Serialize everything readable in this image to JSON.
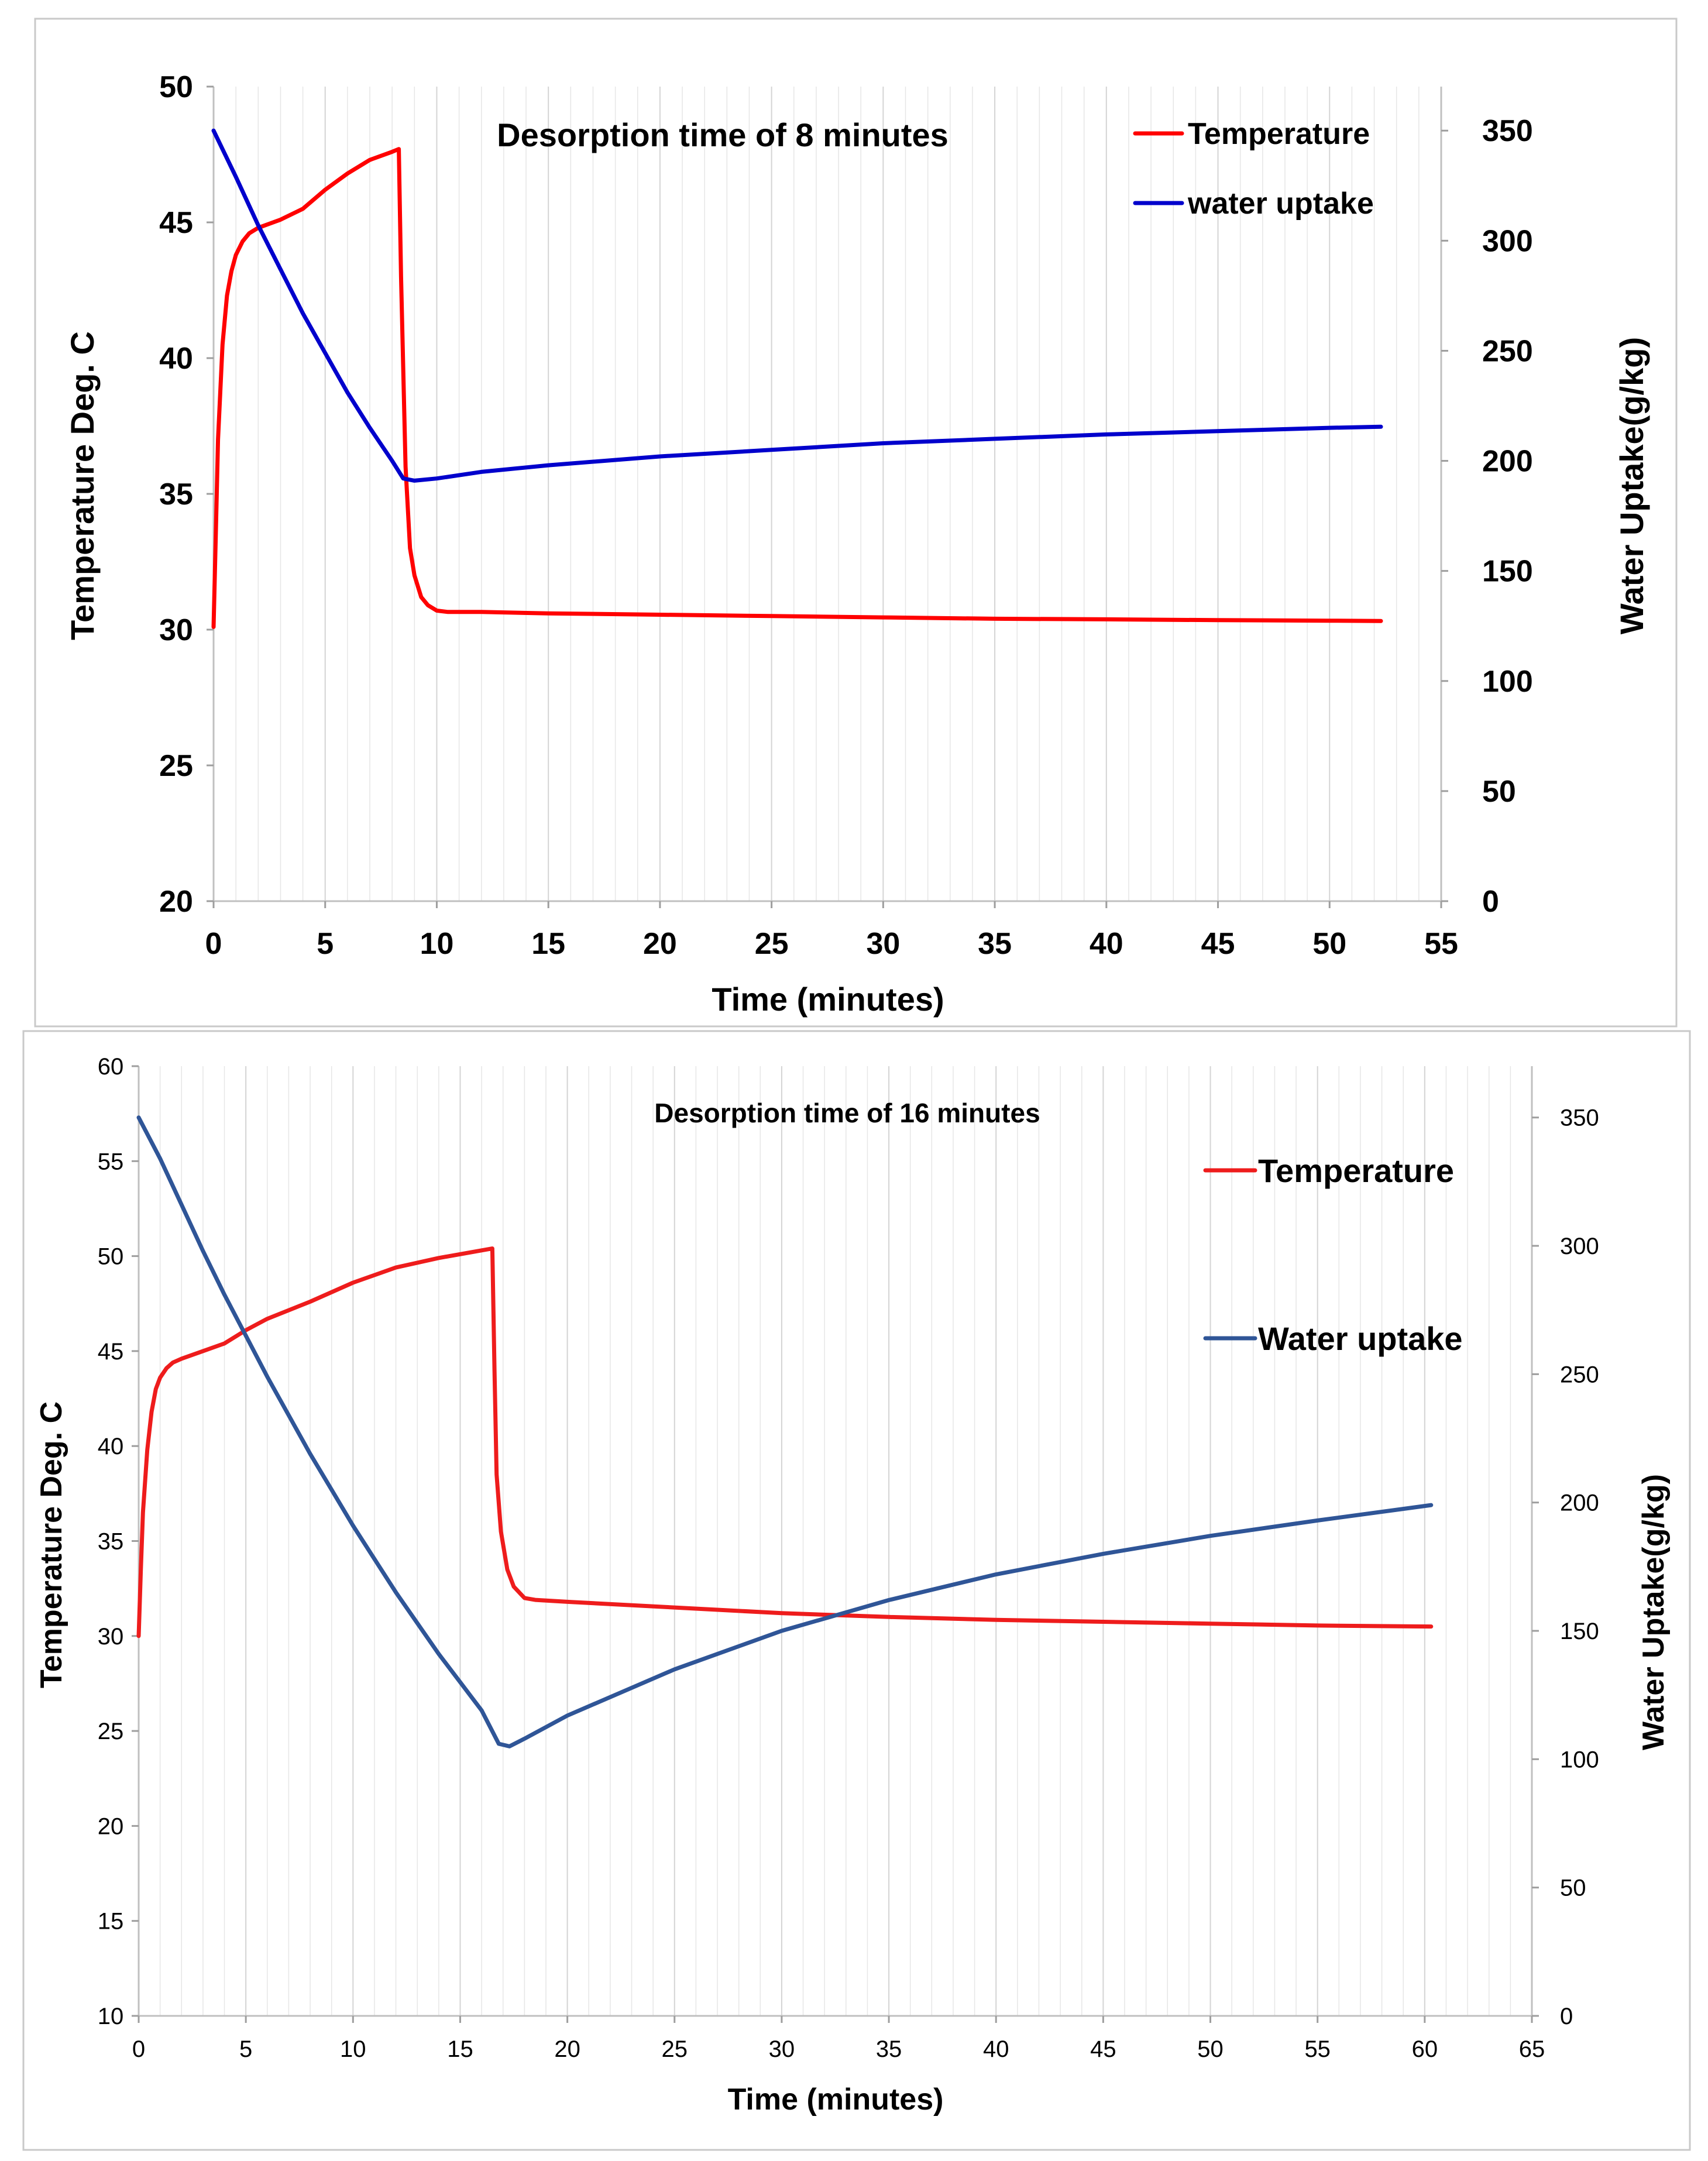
{
  "chart_data": [
    {
      "type": "line",
      "title": "Desorption time of 8 minutes",
      "xlabel": "Time (minutes)",
      "ylabel": "Temperature Deg. C",
      "y2label": "Water Uptake(g/kg)",
      "xlim": [
        0,
        55
      ],
      "ylim": [
        20,
        50
      ],
      "y2lim": [
        0,
        370
      ],
      "x_ticks": [
        "0",
        "5",
        "10",
        "15",
        "20",
        "25",
        "30",
        "35",
        "40",
        "45",
        "50",
        "55"
      ],
      "y_ticks": [
        "20",
        "25",
        "30",
        "35",
        "40",
        "45",
        "50"
      ],
      "y2_ticks": [
        "0",
        "50",
        "100",
        "150",
        "200",
        "250",
        "300",
        "350"
      ],
      "grid": "vertical",
      "legend": "top-right",
      "series": [
        {
          "name": "Temperature",
          "axis": "left",
          "color": "#ff0000",
          "x": [
            0,
            0.1,
            0.2,
            0.4,
            0.6,
            0.8,
            1.0,
            1.3,
            1.6,
            2.0,
            3.0,
            4.0,
            5.0,
            6.0,
            7.0,
            8.0,
            8.3,
            8.4,
            8.6,
            8.8,
            9.0,
            9.3,
            9.6,
            10.0,
            10.5,
            12,
            15,
            20,
            25,
            30,
            35,
            40,
            45,
            50,
            52.3
          ],
          "y": [
            30.1,
            33.5,
            37.0,
            40.5,
            42.3,
            43.2,
            43.8,
            44.3,
            44.6,
            44.8,
            45.1,
            45.5,
            46.2,
            46.8,
            47.3,
            47.6,
            47.7,
            43.0,
            36.0,
            33.0,
            32.0,
            31.2,
            30.9,
            30.7,
            30.65,
            30.65,
            30.6,
            30.55,
            30.5,
            30.45,
            30.4,
            30.38,
            30.35,
            30.33,
            30.32
          ]
        },
        {
          "name": "water uptake",
          "axis": "right",
          "color": "#0000cc",
          "x": [
            0,
            1,
            2,
            3,
            4,
            5,
            6,
            7,
            8,
            8.5,
            9,
            10,
            12,
            15,
            20,
            25,
            30,
            35,
            40,
            45,
            50,
            52.3
          ],
          "y": [
            350,
            329,
            307,
            287,
            267,
            249,
            231,
            215,
            200,
            192,
            191,
            192,
            195,
            198,
            202,
            205,
            208,
            210,
            212,
            213.5,
            215,
            215.5
          ]
        }
      ]
    },
    {
      "type": "line",
      "title": "Desorption time of 16 minutes",
      "xlabel": "Time (minutes)",
      "ylabel": "Temperature Deg. C",
      "y2label": "Water Uptake(g/kg)",
      "xlim": [
        0,
        65
      ],
      "ylim": [
        10,
        60
      ],
      "y2lim": [
        0,
        370
      ],
      "x_ticks": [
        "0",
        "5",
        "10",
        "15",
        "20",
        "25",
        "30",
        "35",
        "40",
        "45",
        "50",
        "55",
        "60",
        "65"
      ],
      "y_ticks": [
        "10",
        "15",
        "20",
        "25",
        "30",
        "35",
        "40",
        "45",
        "50",
        "55",
        "60"
      ],
      "y2_ticks": [
        "0",
        "50",
        "100",
        "150",
        "200",
        "250",
        "300",
        "350"
      ],
      "grid": "vertical",
      "legend": "right",
      "series": [
        {
          "name": "Temperature",
          "axis": "left",
          "color": "#ee1c1c",
          "x": [
            0,
            0.1,
            0.2,
            0.4,
            0.6,
            0.8,
            1.0,
            1.3,
            1.6,
            2.0,
            3.0,
            4.0,
            5.0,
            6.0,
            8.0,
            10.0,
            12.0,
            14.0,
            16.5,
            16.6,
            16.7,
            16.9,
            17.2,
            17.5,
            18.0,
            18.5,
            20,
            25,
            30,
            35,
            40,
            45,
            50,
            55,
            60.3
          ],
          "y": [
            30.0,
            33.5,
            36.5,
            39.8,
            41.8,
            43.0,
            43.6,
            44.1,
            44.4,
            44.6,
            45.0,
            45.4,
            46.1,
            46.7,
            47.6,
            48.6,
            49.4,
            49.9,
            50.4,
            44.0,
            38.5,
            35.5,
            33.5,
            32.6,
            32.0,
            31.9,
            31.8,
            31.5,
            31.2,
            31.0,
            30.85,
            30.75,
            30.65,
            30.55,
            30.5
          ]
        },
        {
          "name": "Water uptake",
          "axis": "right",
          "color": "#2f5597",
          "x": [
            0,
            1,
            2,
            3,
            4,
            5,
            6,
            7,
            8,
            9,
            10,
            11,
            12,
            13,
            14,
            15,
            16,
            16.8,
            17.3,
            18,
            20,
            25,
            30,
            35,
            40,
            45,
            50,
            55,
            60.3
          ],
          "y": [
            350,
            334,
            316,
            298,
            281,
            265,
            249,
            234,
            219,
            205,
            191,
            178,
            165,
            153,
            141,
            130,
            119,
            106,
            105,
            108,
            117,
            135,
            150,
            162,
            172,
            180,
            187,
            193,
            199
          ]
        }
      ]
    }
  ]
}
